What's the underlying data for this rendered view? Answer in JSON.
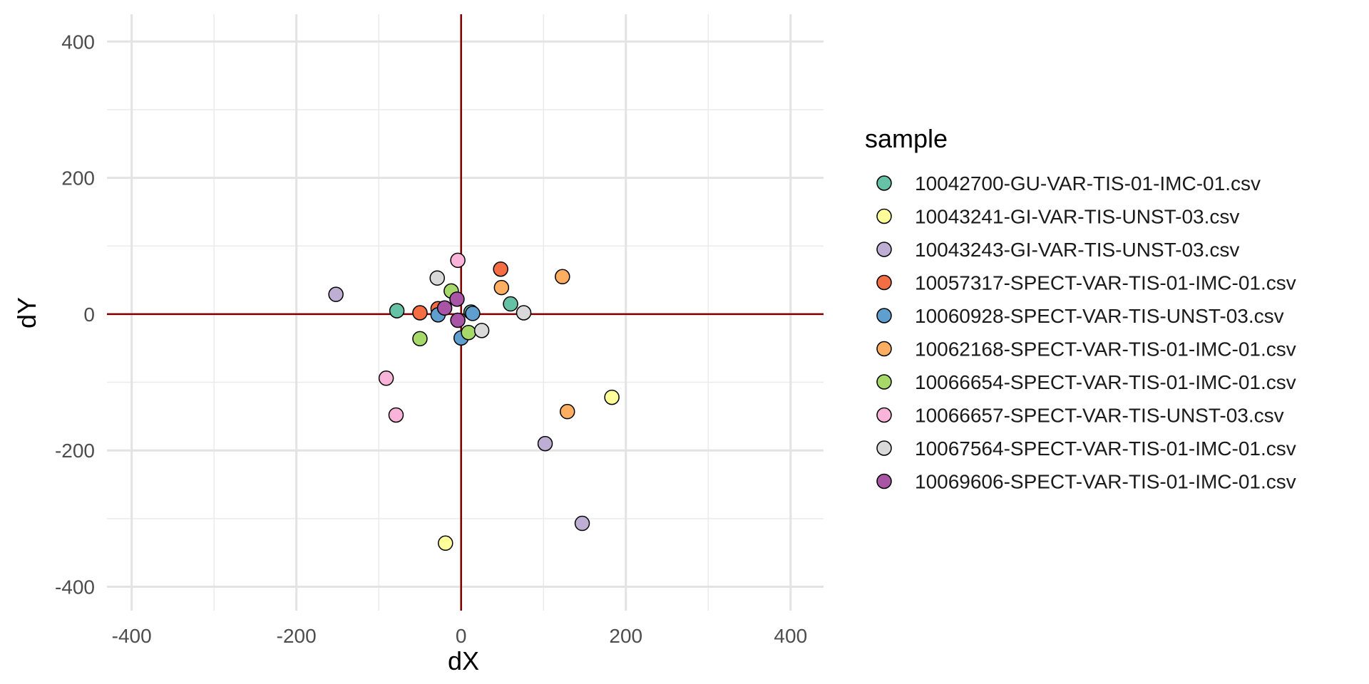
{
  "chart_data": {
    "type": "scatter",
    "xlabel": "dX",
    "ylabel": "dY",
    "xlim": [
      -430,
      440
    ],
    "ylim": [
      -435,
      440
    ],
    "x_ticks": [
      -400,
      -200,
      0,
      200,
      400
    ],
    "y_ticks": [
      -400,
      -200,
      0,
      200,
      400
    ],
    "x_tick_labels": [
      "-400",
      "-200",
      "0",
      "200",
      "400"
    ],
    "y_tick_labels": [
      "-400",
      "-200",
      "0",
      "200",
      "400"
    ],
    "grid": true,
    "reference_lines": {
      "x": 0,
      "y": 0,
      "color": "#800000"
    },
    "legend": {
      "title": "sample",
      "position": "right"
    },
    "series": [
      {
        "name": "10042700-GU-VAR-TIS-01-IMC-01.csv",
        "color": "#66C2A5",
        "points": [
          [
            -78,
            5
          ],
          [
            60,
            15
          ],
          [
            12,
            3
          ]
        ]
      },
      {
        "name": "10043241-GI-VAR-TIS-UNST-03.csv",
        "color": "#FFFF99",
        "points": [
          [
            183,
            -122
          ],
          [
            -19,
            -336
          ]
        ]
      },
      {
        "name": "10043243-GI-VAR-TIS-UNST-03.csv",
        "color": "#BEAED4",
        "points": [
          [
            -152,
            29
          ],
          [
            102,
            -190
          ],
          [
            147,
            -307
          ]
        ]
      },
      {
        "name": "10057317-SPECT-VAR-TIS-01-IMC-01.csv",
        "color": "#F46D43",
        "points": [
          [
            48,
            66
          ],
          [
            -50,
            2
          ],
          [
            -28,
            8
          ]
        ]
      },
      {
        "name": "10060928-SPECT-VAR-TIS-UNST-03.csv",
        "color": "#5E9FD0",
        "points": [
          [
            -28,
            -1
          ],
          [
            14,
            1
          ],
          [
            0,
            -35
          ]
        ]
      },
      {
        "name": "10062168-SPECT-VAR-TIS-01-IMC-01.csv",
        "color": "#FDAE61",
        "points": [
          [
            123,
            55
          ],
          [
            49,
            39
          ],
          [
            129,
            -143
          ]
        ]
      },
      {
        "name": "10066654-SPECT-VAR-TIS-01-IMC-01.csv",
        "color": "#A6D96A",
        "points": [
          [
            -12,
            34
          ],
          [
            -50,
            -36
          ],
          [
            9,
            -27
          ]
        ]
      },
      {
        "name": "10066657-SPECT-VAR-TIS-UNST-03.csv",
        "color": "#FBB4D9",
        "points": [
          [
            -4,
            79
          ],
          [
            -91,
            -94
          ],
          [
            -79,
            -148
          ]
        ]
      },
      {
        "name": "10067564-SPECT-VAR-TIS-01-IMC-01.csv",
        "color": "#D9D9D9",
        "points": [
          [
            -29,
            53
          ],
          [
            76,
            2
          ],
          [
            25,
            -24
          ]
        ]
      },
      {
        "name": "10069606-SPECT-VAR-TIS-01-IMC-01.csv",
        "color": "#A855A6",
        "points": [
          [
            -5,
            22
          ],
          [
            -20,
            9
          ],
          [
            -4,
            -9
          ]
        ]
      }
    ]
  }
}
